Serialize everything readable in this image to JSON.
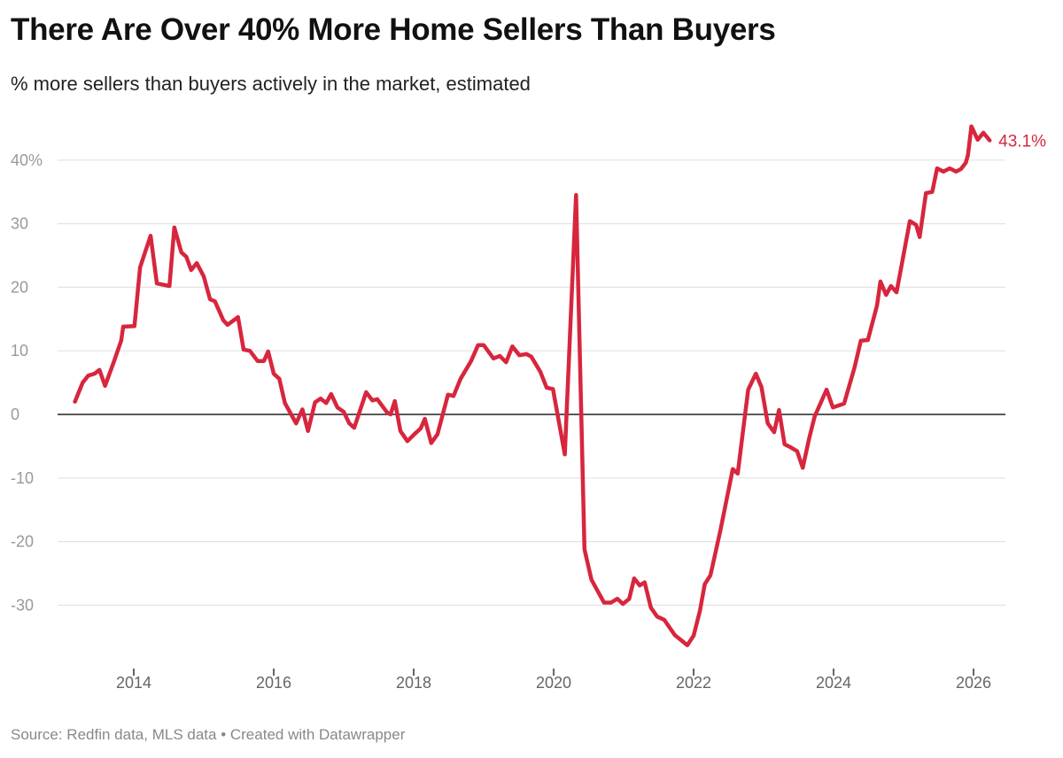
{
  "title": "There Are Over 40% More Home Sellers Than Buyers",
  "subtitle": "% more sellers than buyers actively in the market, estimated",
  "source": "Source: Redfin data, MLS data • Created with Datawrapper",
  "chart_data": {
    "type": "line",
    "title": "There Are Over 40% More Home Sellers Than Buyers",
    "subtitle": "% more sellers than buyers actively in the market, estimated",
    "xlabel": "",
    "ylabel": "",
    "grid": true,
    "line_color": "#d7263d",
    "xlim": [
      2012.91,
      2026.46
    ],
    "ylim": [
      -37,
      46
    ],
    "y_ticks": [
      {
        "value": 40,
        "label": "40%"
      },
      {
        "value": 30,
        "label": "30"
      },
      {
        "value": 20,
        "label": "20"
      },
      {
        "value": 10,
        "label": "10"
      },
      {
        "value": 0,
        "label": "0"
      },
      {
        "value": -10,
        "label": "-10"
      },
      {
        "value": -20,
        "label": "-20"
      },
      {
        "value": -30,
        "label": "-30"
      }
    ],
    "x_ticks": [
      {
        "value": 2014,
        "label": "2014"
      },
      {
        "value": 2016,
        "label": "2016"
      },
      {
        "value": 2018,
        "label": "2018"
      },
      {
        "value": 2020,
        "label": "2020"
      },
      {
        "value": 2022,
        "label": "2022"
      },
      {
        "value": 2024,
        "label": "2024"
      },
      {
        "value": 2026,
        "label": "2026"
      }
    ],
    "end_label": "43.1%",
    "series": [
      {
        "points": [
          [
            2013.16,
            2.0
          ],
          [
            2013.27,
            5.0
          ],
          [
            2013.35,
            6.1
          ],
          [
            2013.44,
            6.4
          ],
          [
            2013.51,
            7.0
          ],
          [
            2013.59,
            4.5
          ],
          [
            2013.71,
            8.1
          ],
          [
            2013.82,
            11.6
          ],
          [
            2013.85,
            13.8
          ],
          [
            2014.01,
            13.9
          ],
          [
            2014.09,
            23.1
          ],
          [
            2014.24,
            28.1
          ],
          [
            2014.33,
            20.6
          ],
          [
            2014.51,
            20.2
          ],
          [
            2014.58,
            29.4
          ],
          [
            2014.68,
            25.5
          ],
          [
            2014.75,
            24.8
          ],
          [
            2014.82,
            22.7
          ],
          [
            2014.9,
            23.8
          ],
          [
            2015.0,
            21.7
          ],
          [
            2015.09,
            18.1
          ],
          [
            2015.16,
            17.8
          ],
          [
            2015.28,
            14.8
          ],
          [
            2015.34,
            14.1
          ],
          [
            2015.49,
            15.3
          ],
          [
            2015.57,
            10.2
          ],
          [
            2015.66,
            10.0
          ],
          [
            2015.77,
            8.4
          ],
          [
            2015.86,
            8.4
          ],
          [
            2015.92,
            9.9
          ],
          [
            2016.0,
            6.4
          ],
          [
            2016.08,
            5.6
          ],
          [
            2016.16,
            1.8
          ],
          [
            2016.32,
            -1.4
          ],
          [
            2016.41,
            0.8
          ],
          [
            2016.49,
            -2.6
          ],
          [
            2016.59,
            1.9
          ],
          [
            2016.67,
            2.5
          ],
          [
            2016.75,
            1.8
          ],
          [
            2016.82,
            3.2
          ],
          [
            2016.91,
            1.1
          ],
          [
            2017.0,
            0.4
          ],
          [
            2017.08,
            -1.4
          ],
          [
            2017.15,
            -2.1
          ],
          [
            2017.32,
            3.5
          ],
          [
            2017.41,
            2.2
          ],
          [
            2017.48,
            2.4
          ],
          [
            2017.62,
            0.3
          ],
          [
            2017.67,
            0.0
          ],
          [
            2017.73,
            2.1
          ],
          [
            2017.81,
            -2.6
          ],
          [
            2017.91,
            -4.2
          ],
          [
            2018.01,
            -3.1
          ],
          [
            2018.1,
            -2.2
          ],
          [
            2018.16,
            -0.7
          ],
          [
            2018.25,
            -4.5
          ],
          [
            2018.34,
            -3.1
          ],
          [
            2018.49,
            3.1
          ],
          [
            2018.57,
            2.9
          ],
          [
            2018.67,
            5.6
          ],
          [
            2018.82,
            8.4
          ],
          [
            2018.92,
            10.9
          ],
          [
            2019.0,
            10.9
          ],
          [
            2019.14,
            8.8
          ],
          [
            2019.23,
            9.2
          ],
          [
            2019.32,
            8.2
          ],
          [
            2019.41,
            10.7
          ],
          [
            2019.51,
            9.3
          ],
          [
            2019.61,
            9.5
          ],
          [
            2019.68,
            9.1
          ],
          [
            2019.81,
            6.7
          ],
          [
            2019.9,
            4.2
          ],
          [
            2019.99,
            4.0
          ],
          [
            2020.16,
            -6.3
          ],
          [
            2020.32,
            34.5
          ],
          [
            2020.44,
            -21.2
          ],
          [
            2020.54,
            -26.0
          ],
          [
            2020.72,
            -29.6
          ],
          [
            2020.82,
            -29.6
          ],
          [
            2020.91,
            -29.0
          ],
          [
            2020.99,
            -29.8
          ],
          [
            2021.08,
            -29.0
          ],
          [
            2021.15,
            -25.8
          ],
          [
            2021.23,
            -26.9
          ],
          [
            2021.3,
            -26.4
          ],
          [
            2021.39,
            -30.4
          ],
          [
            2021.48,
            -31.8
          ],
          [
            2021.58,
            -32.3
          ],
          [
            2021.73,
            -34.7
          ],
          [
            2021.91,
            -36.3
          ],
          [
            2022.0,
            -34.8
          ],
          [
            2022.09,
            -30.9
          ],
          [
            2022.16,
            -26.7
          ],
          [
            2022.24,
            -25.3
          ],
          [
            2022.38,
            -18.4
          ],
          [
            2022.47,
            -13.5
          ],
          [
            2022.56,
            -8.6
          ],
          [
            2022.63,
            -9.3
          ],
          [
            2022.78,
            3.9
          ],
          [
            2022.89,
            6.4
          ],
          [
            2022.97,
            4.3
          ],
          [
            2023.06,
            -1.4
          ],
          [
            2023.15,
            -2.8
          ],
          [
            2023.22,
            0.7
          ],
          [
            2023.3,
            -4.7
          ],
          [
            2023.39,
            -5.2
          ],
          [
            2023.48,
            -5.8
          ],
          [
            2023.56,
            -8.4
          ],
          [
            2023.65,
            -3.8
          ],
          [
            2023.73,
            -0.3
          ],
          [
            2023.9,
            3.9
          ],
          [
            2023.99,
            1.1
          ],
          [
            2024.15,
            1.7
          ],
          [
            2024.3,
            7.4
          ],
          [
            2024.39,
            11.6
          ],
          [
            2024.49,
            11.7
          ],
          [
            2024.62,
            17.1
          ],
          [
            2024.67,
            20.9
          ],
          [
            2024.75,
            18.8
          ],
          [
            2024.82,
            20.2
          ],
          [
            2024.9,
            19.2
          ],
          [
            2025.09,
            30.4
          ],
          [
            2025.18,
            29.8
          ],
          [
            2025.23,
            27.9
          ],
          [
            2025.32,
            34.8
          ],
          [
            2025.41,
            35.0
          ],
          [
            2025.48,
            38.7
          ],
          [
            2025.57,
            38.2
          ],
          [
            2025.66,
            38.7
          ],
          [
            2025.75,
            38.2
          ],
          [
            2025.82,
            38.6
          ],
          [
            2025.89,
            39.6
          ],
          [
            2025.92,
            40.8
          ],
          [
            2025.97,
            45.3
          ],
          [
            2026.06,
            43.2
          ],
          [
            2026.14,
            44.3
          ],
          [
            2026.23,
            43.1
          ]
        ]
      }
    ]
  }
}
